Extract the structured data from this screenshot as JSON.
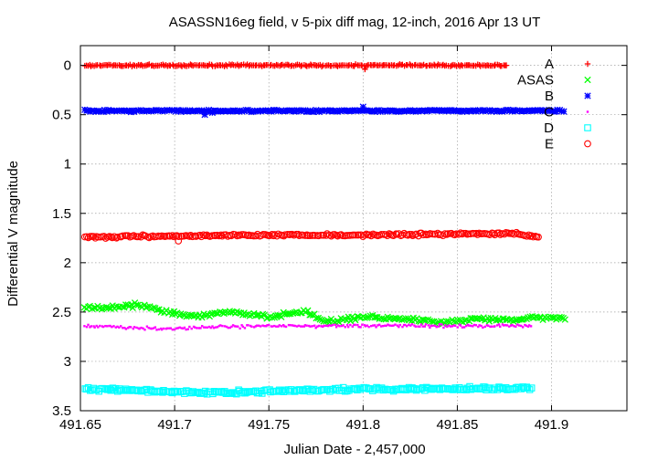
{
  "chart_data": {
    "type": "scatter",
    "title": "ASASSN16eg field, v 5-pix diff mag, 12-inch, 2016 Apr 13 UT",
    "xlabel": "Julian Date - 2,457,000",
    "ylabel": "Differential V magnitude",
    "xlim": [
      491.65,
      491.94
    ],
    "ylim": [
      3.5,
      -0.2
    ],
    "y_inverted": true,
    "x_ticks": [
      491.65,
      491.7,
      491.75,
      491.8,
      491.85,
      491.9
    ],
    "x_tick_labels": [
      "491.65",
      "491.7",
      "491.75",
      "491.8",
      "491.85",
      "491.9"
    ],
    "y_ticks": [
      0,
      0.5,
      1,
      1.5,
      2,
      2.5,
      3,
      3.5
    ],
    "y_tick_labels": [
      "0",
      "0.5",
      "1",
      "1.5",
      "2",
      "2.5",
      "3",
      "3.5"
    ],
    "grid": true,
    "legend_position": "top-right",
    "series": [
      {
        "name": "A",
        "color": "#ff0000",
        "marker": "plus",
        "x_range": [
          491.652,
          491.876
        ],
        "mean": 0.0,
        "scatter": 0.012,
        "points": [
          [
            491.801,
            0.04
          ],
          [
            491.87,
            0.0
          ],
          [
            491.876,
            0.0
          ]
        ]
      },
      {
        "name": "ASAS",
        "color": "#00ff00",
        "marker": "cross",
        "x_range": [
          491.652,
          491.908
        ],
        "trend": [
          [
            491.652,
            2.46
          ],
          [
            491.67,
            2.45
          ],
          [
            491.68,
            2.43
          ],
          [
            491.69,
            2.47
          ],
          [
            491.7,
            2.52
          ],
          [
            491.71,
            2.55
          ],
          [
            491.72,
            2.52
          ],
          [
            491.73,
            2.5
          ],
          [
            491.74,
            2.52
          ],
          [
            491.75,
            2.55
          ],
          [
            491.76,
            2.52
          ],
          [
            491.77,
            2.5
          ],
          [
            491.78,
            2.6
          ],
          [
            491.8,
            2.55
          ],
          [
            491.82,
            2.57
          ],
          [
            491.84,
            2.6
          ],
          [
            491.86,
            2.57
          ],
          [
            491.88,
            2.58
          ],
          [
            491.9,
            2.55
          ],
          [
            491.908,
            2.57
          ]
        ],
        "scatter": 0.025
      },
      {
        "name": "B",
        "color": "#0000ff",
        "marker": "star",
        "x_range": [
          491.652,
          491.907
        ],
        "mean": 0.46,
        "scatter": 0.012,
        "points": [
          [
            491.716,
            0.5
          ],
          [
            491.72,
            0.48
          ],
          [
            491.8,
            0.42
          ]
        ]
      },
      {
        "name": "C",
        "color": "#ff00ff",
        "marker": "dot",
        "x_range": [
          491.652,
          491.89
        ],
        "trend": [
          [
            491.652,
            2.64
          ],
          [
            491.68,
            2.66
          ],
          [
            491.7,
            2.67
          ],
          [
            491.72,
            2.65
          ],
          [
            491.75,
            2.64
          ],
          [
            491.8,
            2.64
          ],
          [
            491.85,
            2.64
          ],
          [
            491.89,
            2.64
          ]
        ],
        "scatter": 0.02
      },
      {
        "name": "D",
        "color": "#00ffff",
        "marker": "box",
        "x_range": [
          491.652,
          491.89
        ],
        "trend": [
          [
            491.652,
            3.28
          ],
          [
            491.7,
            3.31
          ],
          [
            491.72,
            3.32
          ],
          [
            491.75,
            3.3
          ],
          [
            491.8,
            3.28
          ],
          [
            491.85,
            3.28
          ],
          [
            491.89,
            3.27
          ]
        ],
        "scatter": 0.025
      },
      {
        "name": "E",
        "color": "#ff0000",
        "marker": "circle",
        "x_range": [
          491.652,
          491.893
        ],
        "trend": [
          [
            491.652,
            1.74
          ],
          [
            491.7,
            1.73
          ],
          [
            491.75,
            1.72
          ],
          [
            491.8,
            1.72
          ],
          [
            491.85,
            1.71
          ],
          [
            491.88,
            1.7
          ],
          [
            491.893,
            1.74
          ]
        ],
        "scatter": 0.015,
        "points": [
          [
            491.702,
            1.78
          ],
          [
            491.893,
            1.74
          ]
        ]
      }
    ]
  }
}
